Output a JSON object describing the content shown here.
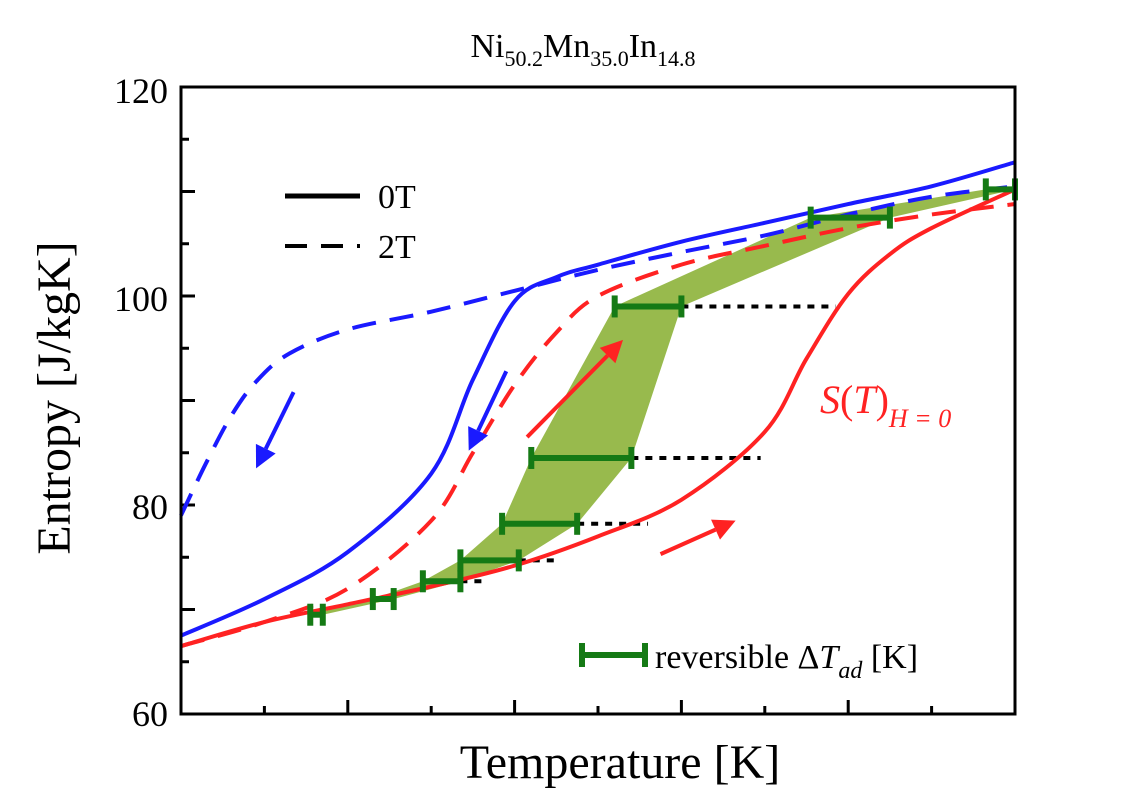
{
  "chart_data": {
    "type": "line",
    "title": {
      "base1": "Ni",
      "sub1": "50.2",
      "base2": "Mn",
      "sub2": "35.0",
      "base3": "In",
      "sub3": "14.8"
    },
    "xlabel": "Temperature [K]",
    "ylabel": "Entropy [J/kgK]",
    "ylim": [
      60,
      120
    ],
    "yticks": [
      "60",
      "80",
      "100",
      "120"
    ],
    "x_tick_labels_shown": false,
    "legend": {
      "placement": "top-left",
      "items": [
        {
          "label": "0T",
          "style": "solid"
        },
        {
          "label": "2T",
          "style": "dashed"
        }
      ]
    },
    "annotation_S": {
      "s": "S",
      "t": "T",
      "sub": "H = 0"
    },
    "reversible_legend": {
      "text1": "reversible Δ",
      "t": "T",
      "sub": "ad",
      "text2": " [K]"
    },
    "colors": {
      "heating": "#ff2222",
      "cooling": "#1a1aff",
      "reversible": "#157a15",
      "fill": "#8db33a",
      "guide": "#000000"
    },
    "series": [
      {
        "field": "0T",
        "branch": "heating",
        "color": "#ff2222",
        "dash": "solid",
        "x": [
          0,
          1.0,
          2.0,
          3.0,
          4.0,
          5.0,
          6.0,
          7.0,
          7.5,
          8.0,
          8.5,
          9.0,
          10.0
        ],
        "y": [
          66.5,
          68.8,
          70.5,
          72.2,
          74.2,
          77.0,
          80.5,
          87.0,
          94.0,
          100.2,
          104.0,
          106.5,
          110.2
        ]
      },
      {
        "field": "0T",
        "branch": "cooling",
        "color": "#1a1aff",
        "dash": "solid",
        "x": [
          0,
          1.0,
          2.0,
          3.0,
          3.5,
          4.0,
          4.5,
          5.0,
          6.0,
          7.0,
          8.0,
          9.0,
          10.0
        ],
        "y": [
          67.5,
          71.0,
          75.5,
          83.0,
          92.0,
          99.5,
          101.8,
          103.0,
          105.2,
          107.0,
          108.8,
          110.5,
          112.8
        ]
      },
      {
        "field": "2T",
        "branch": "heating",
        "color": "#ff2222",
        "dash": "dashed",
        "x": [
          0,
          1.0,
          2.0,
          3.0,
          3.5,
          4.0,
          4.5,
          5.0,
          6.0,
          7.0,
          8.0,
          9.0,
          10.0
        ],
        "y": [
          66.5,
          68.8,
          72.0,
          78.5,
          85.0,
          91.5,
          96.5,
          100.0,
          103.0,
          104.8,
          106.5,
          107.8,
          108.8
        ]
      },
      {
        "field": "2T",
        "branch": "cooling",
        "color": "#1a1aff",
        "dash": "dashed",
        "x": [
          0,
          0.3,
          0.6,
          0.9,
          1.3,
          2.0,
          3.0,
          4.0,
          5.0,
          6.0,
          7.0,
          8.0,
          9.0,
          10.0
        ],
        "y": [
          79.0,
          84.0,
          88.5,
          91.8,
          94.5,
          96.8,
          98.5,
          100.5,
          102.5,
          104.2,
          105.8,
          107.8,
          109.5,
          110.5
        ]
      }
    ],
    "reversible_dTad": [
      {
        "y": 69.5,
        "x1": 1.55,
        "x2": 1.7
      },
      {
        "y": 71.0,
        "x1": 2.3,
        "x2": 2.55
      },
      {
        "y": 72.7,
        "x1": 2.9,
        "x2": 3.35
      },
      {
        "y": 74.7,
        "x1": 3.35,
        "x2": 4.05
      },
      {
        "y": 78.2,
        "x1": 3.85,
        "x2": 4.75
      },
      {
        "y": 84.5,
        "x1": 4.2,
        "x2": 5.4
      },
      {
        "y": 99.0,
        "x1": 5.2,
        "x2": 6.0
      },
      {
        "y": 107.5,
        "x1": 7.55,
        "x2": 8.5
      },
      {
        "y": 110.2,
        "x1": 9.65,
        "x2": 10.0
      }
    ],
    "guide_lines": [
      {
        "y": 72.7,
        "x1": 3.35,
        "x2": 3.65
      },
      {
        "y": 74.7,
        "x1": 4.05,
        "x2": 4.5
      },
      {
        "y": 78.2,
        "x1": 4.75,
        "x2": 5.6
      },
      {
        "y": 84.5,
        "x1": 5.4,
        "x2": 6.95
      },
      {
        "y": 99.0,
        "x1": 6.0,
        "x2": 7.85
      }
    ],
    "arrows": [
      {
        "branch": "heating",
        "color": "#ff2222",
        "from": [
          5.75,
          75.3
        ],
        "to": [
          6.65,
          78.5
        ]
      },
      {
        "branch": "heating",
        "color": "#ff2222",
        "from": [
          4.15,
          86.5
        ],
        "to": [
          5.3,
          95.8
        ]
      },
      {
        "branch": "cooling",
        "color": "#1a1aff",
        "from": [
          3.9,
          92.8
        ],
        "to": [
          3.45,
          85.2
        ]
      },
      {
        "branch": "cooling",
        "color": "#1a1aff",
        "from": [
          1.35,
          90.8
        ],
        "to": [
          0.9,
          83.5
        ]
      }
    ]
  }
}
